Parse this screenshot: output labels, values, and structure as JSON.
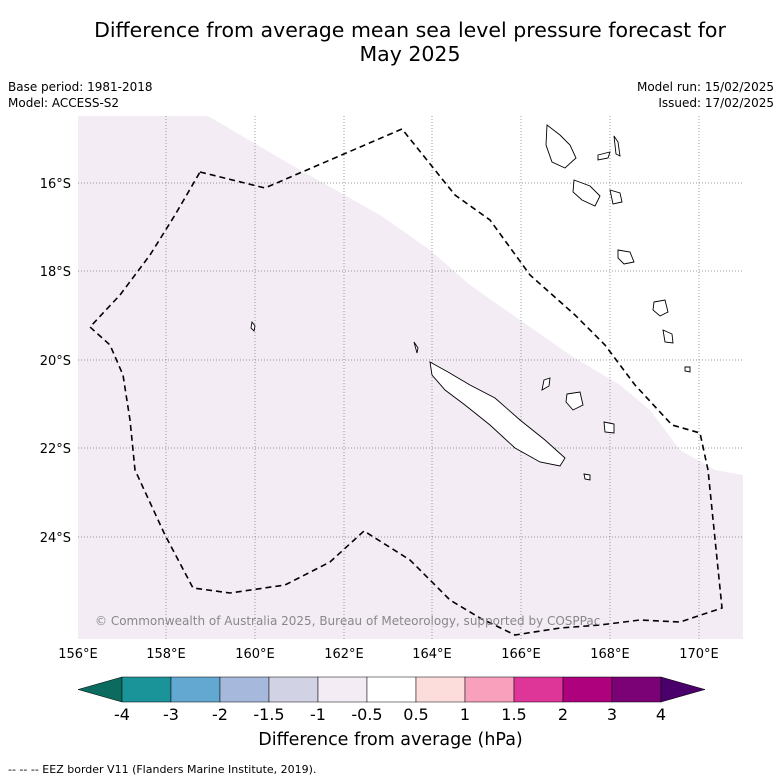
{
  "title": "Difference from average mean sea level pressure forecast for May 2025",
  "title_line1": "Difference from average mean sea level pressure forecast for",
  "title_line2": "May 2025",
  "meta_left": {
    "base_period": "Base period: 1981-2018",
    "model": "Model: ACCESS-S2"
  },
  "meta_right": {
    "model_run": "Model run: 15/02/2025",
    "issued": "Issued: 17/02/2025"
  },
  "map": {
    "lon_ticks": [
      "156°E",
      "158°E",
      "160°E",
      "162°E",
      "164°E",
      "166°E",
      "168°E",
      "170°E"
    ],
    "lat_ticks": [
      "16°S",
      "18°S",
      "20°S",
      "22°S",
      "24°S"
    ],
    "extent": {
      "lon": [
        156,
        171
      ],
      "lat": [
        -26.2,
        -14.4
      ]
    },
    "shaded_category": "-1 to -0.5",
    "shaded_color": "#f3ecf5",
    "border_style": "dashed",
    "copyright": "© Commonwealth of Australia 2025, Bureau of Meteorology, supported by COSPPac"
  },
  "colorbar": {
    "label": "Difference from average (hPa)",
    "tick_labels": [
      "-4",
      "-3",
      "-2",
      "-1.5",
      "-1",
      "-0.5",
      "0.5",
      "1",
      "1.5",
      "2",
      "3",
      "4"
    ],
    "colors": [
      "#0b6b5e",
      "#1a9399",
      "#62a8d0",
      "#a6b9dc",
      "#d2d2e5",
      "#f3ecf5",
      "#ffffff",
      "#fddcdc",
      "#f9a0bc",
      "#dd3598",
      "#ad017e",
      "#7b0177",
      "#49006a"
    ]
  },
  "footer": "--  --  -- EEZ border V11 (Flanders Marine Institute, 2019)."
}
